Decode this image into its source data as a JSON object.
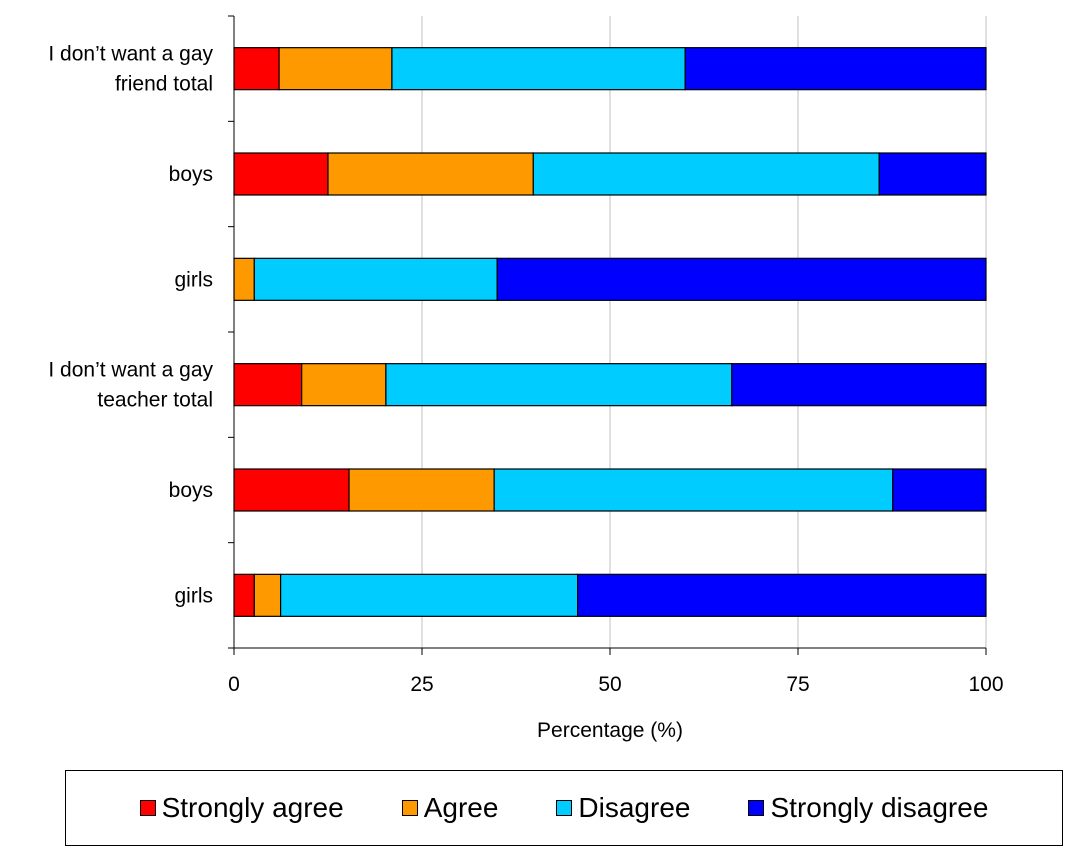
{
  "chart_data": {
    "type": "bar",
    "orientation": "horizontal",
    "stacked": true,
    "categories": [
      [
        "I don’t want a gay",
        "friend total"
      ],
      [
        "boys"
      ],
      [
        "girls"
      ],
      [
        "I don’t want a gay",
        "teacher total"
      ],
      [
        "boys"
      ],
      [
        "girls"
      ]
    ],
    "series": [
      {
        "name": "Strongly agree",
        "color": "#ff0000",
        "values": [
          6,
          12.5,
          0,
          9,
          15.3,
          2.7
        ]
      },
      {
        "name": "Agree",
        "color": "#ff9900",
        "values": [
          15,
          27.3,
          2.7,
          11.2,
          19.3,
          3.5
        ]
      },
      {
        "name": "Disagree",
        "color": "#00ccff",
        "values": [
          39,
          46,
          32.3,
          46,
          53,
          39.5
        ]
      },
      {
        "name": "Strongly disagree",
        "color": "#0000ff",
        "values": [
          40,
          14.2,
          65,
          33.8,
          12.4,
          54.3
        ]
      }
    ],
    "xlabel": "Percentage (%)",
    "ylabel": "",
    "xlim": [
      0,
      100
    ],
    "xticks": [
      "0",
      "25",
      "50",
      "75",
      "100"
    ],
    "grid": "vertical",
    "legend": "bottom"
  }
}
